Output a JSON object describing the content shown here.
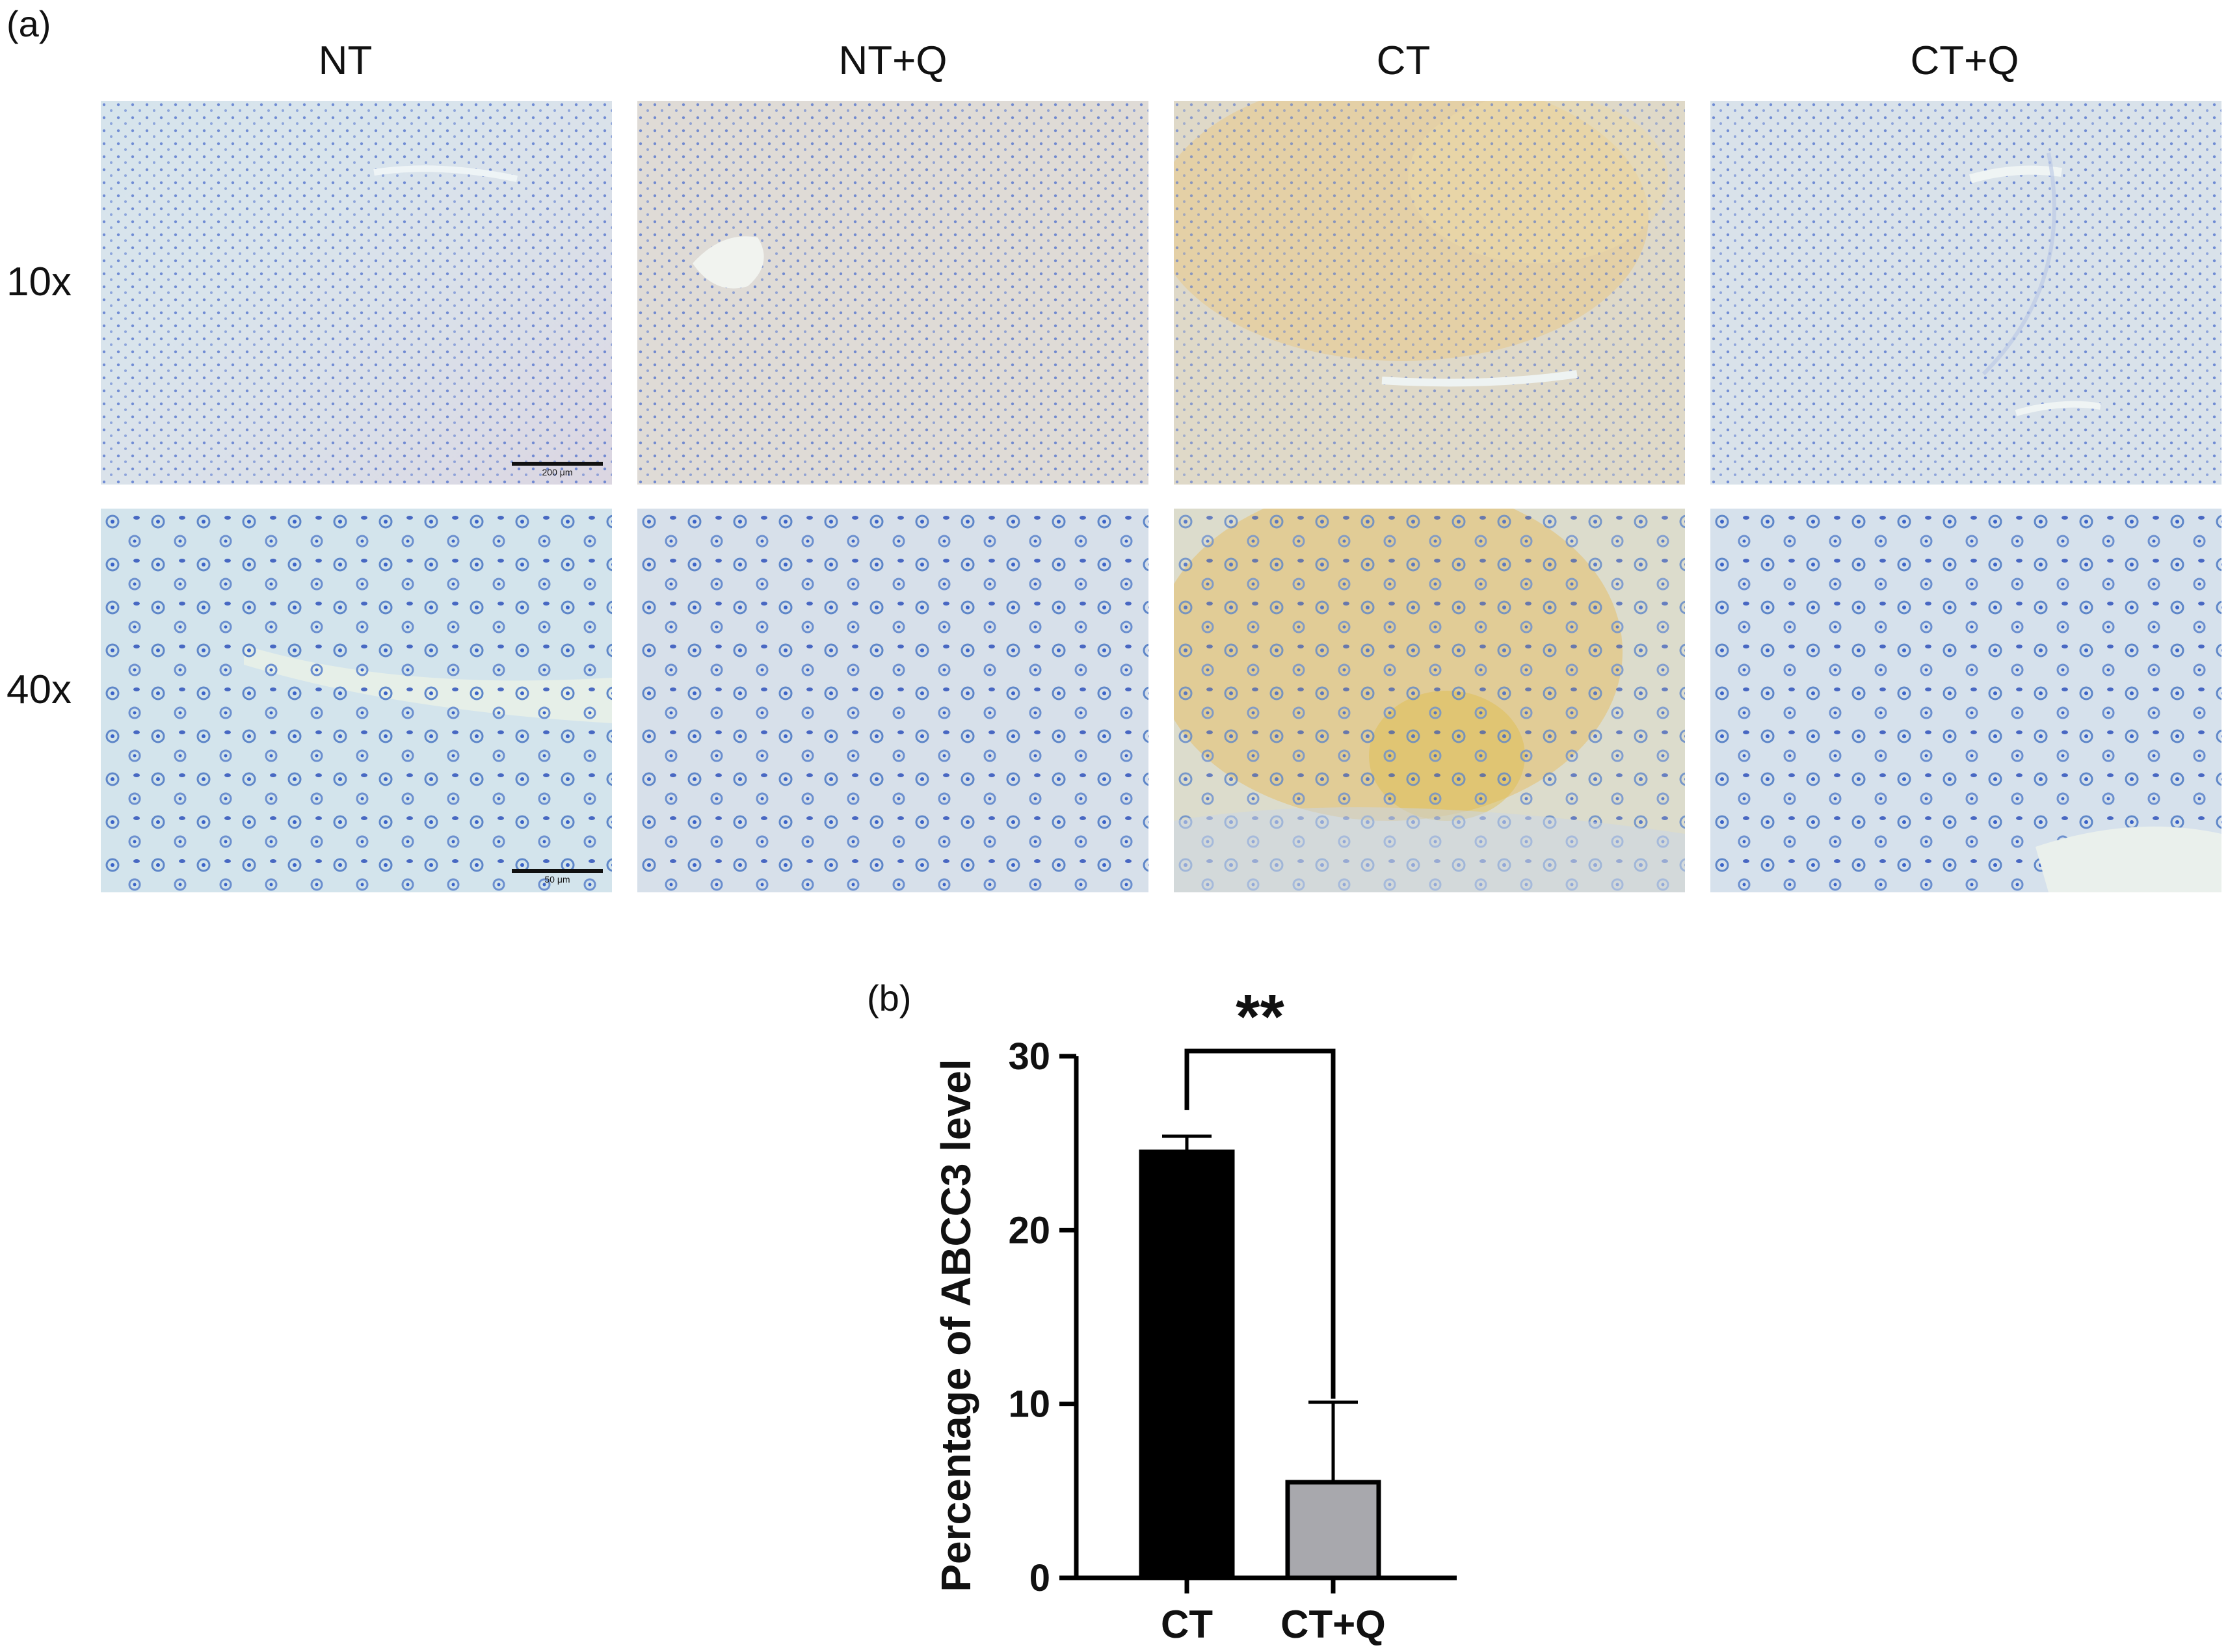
{
  "panel_a_label": "(a)",
  "panel_b_label": "(b)",
  "columns": [
    "NT",
    "NT+Q",
    "CT",
    "CT+Q"
  ],
  "rows": [
    "10x",
    "40x"
  ],
  "scale_bars": {
    "row_10x": "200 μm",
    "row_40x": "50 μm"
  },
  "colors": {
    "tissue_background": "#d9e6ee",
    "nuclei": "#3a63c8",
    "stain_positive": "#e8b54a",
    "bar_ct": "#000000",
    "bar_ctq": "#a8a8ad"
  },
  "chart_data": {
    "type": "bar",
    "categories": [
      "CT",
      "CT+Q"
    ],
    "values": [
      24.5,
      5.5
    ],
    "error_bars": [
      0.9,
      4.6
    ],
    "ylabel": "Percentage of ABCC3 level",
    "xlabel": "",
    "ylim": [
      0,
      30
    ],
    "yticks": [
      0,
      10,
      20,
      30
    ],
    "significance": {
      "between": [
        "CT",
        "CT+Q"
      ],
      "label": "**"
    },
    "grid": false,
    "legend": "none"
  }
}
